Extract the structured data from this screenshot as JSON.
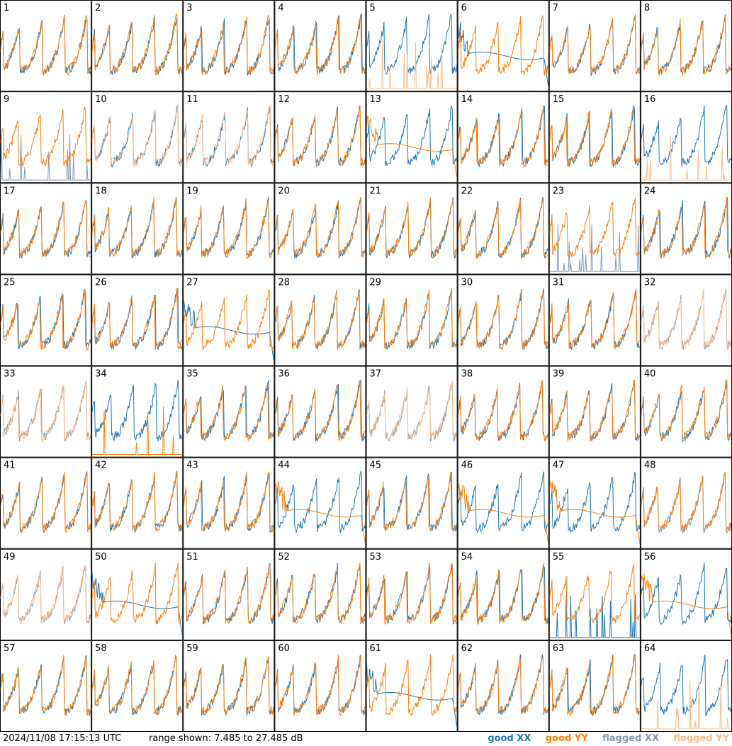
{
  "chart_data": {
    "type": "line",
    "panel_count": 64,
    "panel_labels": [
      "1",
      "2",
      "3",
      "4",
      "5",
      "6",
      "7",
      "8",
      "9",
      "10",
      "11",
      "12",
      "13",
      "14",
      "15",
      "16",
      "17",
      "18",
      "19",
      "20",
      "21",
      "22",
      "23",
      "24",
      "25",
      "26",
      "27",
      "28",
      "29",
      "30",
      "31",
      "32",
      "33",
      "34",
      "35",
      "36",
      "37",
      "38",
      "39",
      "40",
      "41",
      "42",
      "43",
      "44",
      "45",
      "46",
      "47",
      "48",
      "49",
      "50",
      "51",
      "52",
      "53",
      "54",
      "55",
      "56",
      "57",
      "58",
      "59",
      "60",
      "61",
      "62",
      "63",
      "64"
    ],
    "grid": {
      "rows": 8,
      "cols": 8
    },
    "y_units": "dB",
    "ylim": [
      7.485,
      27.485
    ],
    "series": [
      {
        "name": "good XX",
        "color": "#1f77b4"
      },
      {
        "name": "good YY",
        "color": "#ff7f0e"
      },
      {
        "name": "flagged XX",
        "color": "#7f9bb5"
      },
      {
        "name": "flagged YY",
        "color": "#ffbb88"
      }
    ],
    "panel_styles": {
      "normal": "typical bandpass: both polarizations follow the same scalloped spectrum",
      "flat_yy": "YY flat and low with a sharp drop at the high-frequency edge",
      "flat_xx": "XX flat and low with a sharp drop at the high-frequency edge",
      "spiky_xx": "XX mostly near the floor with tall spikes",
      "spiky_yy": "YY mostly near the floor with tall spikes"
    },
    "panels": {
      "1": {
        "xx": "good",
        "yy": "good",
        "style": "normal"
      },
      "5": {
        "xx": "good",
        "yy": "flagged",
        "style": "spiky_yy"
      },
      "6": {
        "xx": "good",
        "yy": "good",
        "style": "flat_xx"
      },
      "9": {
        "xx": "flagged",
        "yy": "good",
        "style": "spiky_xx"
      },
      "10": {
        "xx": "good",
        "yy": "flagged",
        "style": "normal"
      },
      "11": {
        "xx": "good",
        "yy": "flagged",
        "style": "normal"
      },
      "13": {
        "xx": "good",
        "yy": "good",
        "style": "flat_yy"
      },
      "16": {
        "xx": "good",
        "yy": "flagged",
        "style": "spiky_yy"
      },
      "23": {
        "xx": "flagged",
        "yy": "good",
        "style": "spiky_xx"
      },
      "25": {
        "xx": "good",
        "yy": "good",
        "style": "normal"
      },
      "27": {
        "xx": "good",
        "yy": "good",
        "style": "flat_xx"
      },
      "32": {
        "xx": "flagged",
        "yy": "flagged",
        "style": "normal"
      },
      "33": {
        "xx": "flagged",
        "yy": "flagged",
        "style": "normal"
      },
      "34": {
        "xx": "good",
        "yy": "good",
        "style": "spiky_yy"
      },
      "37": {
        "xx": "flagged",
        "yy": "flagged",
        "style": "normal"
      },
      "39": {
        "xx": "good",
        "yy": "good",
        "style": "normal"
      },
      "44": {
        "xx": "good",
        "yy": "good",
        "style": "flat_yy"
      },
      "45": {
        "xx": "good",
        "yy": "good",
        "style": "normal"
      },
      "46": {
        "xx": "good",
        "yy": "good",
        "style": "flat_yy"
      },
      "47": {
        "xx": "good",
        "yy": "good",
        "style": "flat_yy"
      },
      "48": {
        "xx": "flagged",
        "yy": "good",
        "style": "normal"
      },
      "49": {
        "xx": "flagged",
        "yy": "flagged",
        "style": "normal"
      },
      "50": {
        "xx": "good",
        "yy": "good",
        "style": "flat_xx"
      },
      "53": {
        "xx": "good",
        "yy": "good",
        "style": "normal"
      },
      "55": {
        "xx": "good",
        "yy": "good",
        "style": "spiky_xx"
      },
      "56": {
        "xx": "good",
        "yy": "good",
        "style": "flat_yy"
      },
      "61": {
        "xx": "good",
        "yy": "good",
        "style": "flat_xx"
      },
      "62": {
        "xx": "good",
        "yy": "good",
        "style": "normal"
      },
      "64": {
        "xx": "good",
        "yy": "flagged",
        "style": "spiky_yy"
      }
    }
  },
  "footer": {
    "timestamp": "2024/11/08 17:15:13 UTC",
    "range_text": "range shown: 7.485 to 27.485 dB"
  },
  "legend": {
    "good_xx": {
      "label": "good XX",
      "color": "#1f77b4"
    },
    "good_yy": {
      "label": "good YY",
      "color": "#ff7f0e"
    },
    "flagged_xx": {
      "label": "flagged XX",
      "color": "#7f9bb5"
    },
    "flagged_yy": {
      "label": "flagged YY",
      "color": "#ffbb88"
    }
  }
}
